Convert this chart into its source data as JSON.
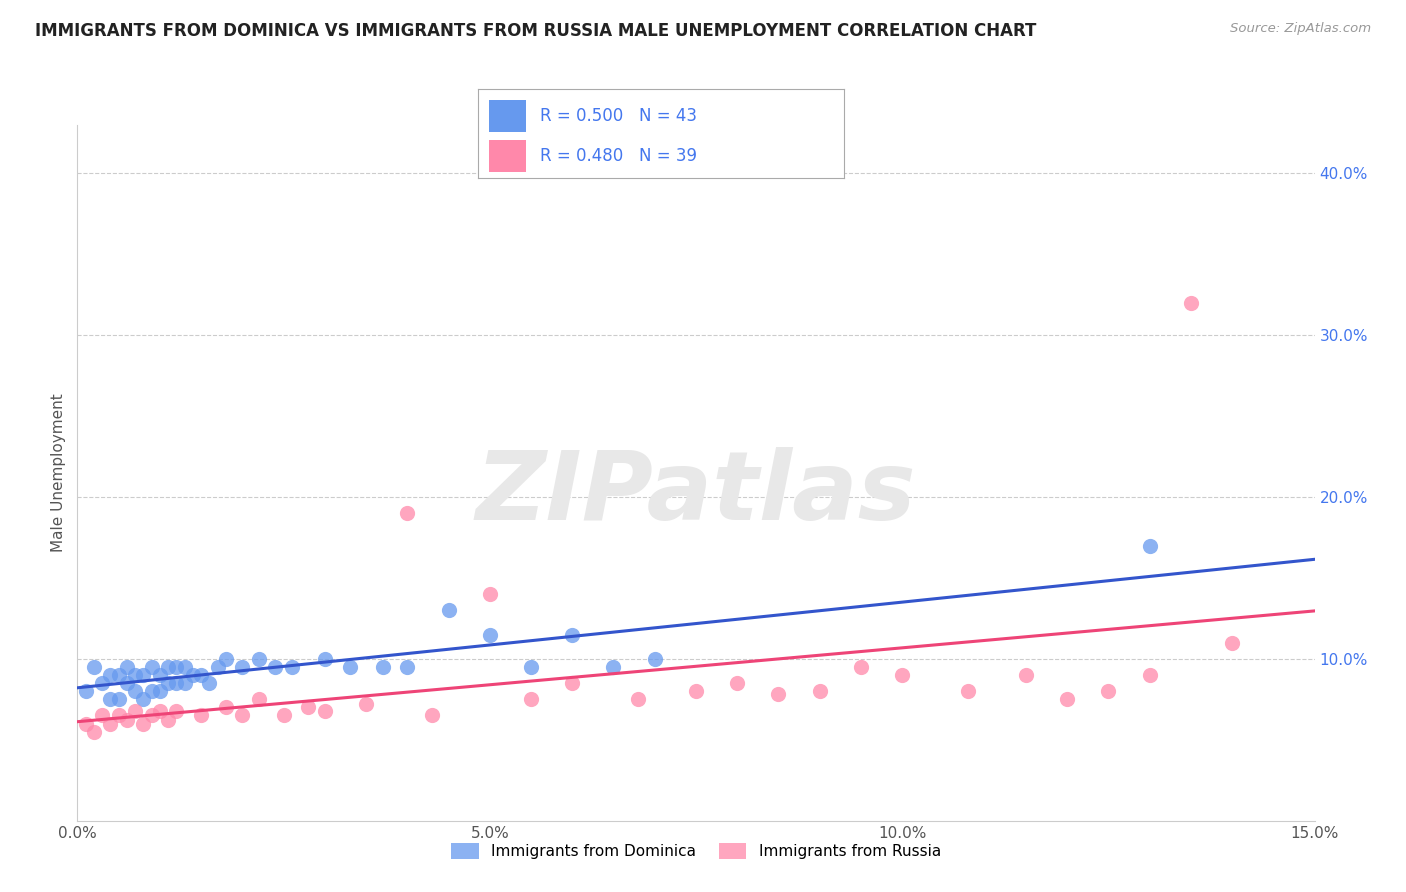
{
  "title": "IMMIGRANTS FROM DOMINICA VS IMMIGRANTS FROM RUSSIA MALE UNEMPLOYMENT CORRELATION CHART",
  "source": "Source: ZipAtlas.com",
  "ylabel": "Male Unemployment",
  "series": [
    {
      "name": "Immigrants from Dominica",
      "R": 0.5,
      "N": 43,
      "color": "#6699ee",
      "trend_color": "#3355cc",
      "trend_style": "-",
      "x": [
        0.001,
        0.002,
        0.003,
        0.004,
        0.004,
        0.005,
        0.005,
        0.006,
        0.006,
        0.007,
        0.007,
        0.008,
        0.008,
        0.009,
        0.009,
        0.01,
        0.01,
        0.011,
        0.011,
        0.012,
        0.012,
        0.013,
        0.013,
        0.014,
        0.015,
        0.016,
        0.017,
        0.018,
        0.02,
        0.022,
        0.024,
        0.026,
        0.03,
        0.033,
        0.037,
        0.04,
        0.045,
        0.05,
        0.055,
        0.06,
        0.065,
        0.07,
        0.13
      ],
      "y": [
        0.08,
        0.095,
        0.085,
        0.075,
        0.09,
        0.075,
        0.09,
        0.085,
        0.095,
        0.08,
        0.09,
        0.075,
        0.09,
        0.08,
        0.095,
        0.08,
        0.09,
        0.085,
        0.095,
        0.085,
        0.095,
        0.085,
        0.095,
        0.09,
        0.09,
        0.085,
        0.095,
        0.1,
        0.095,
        0.1,
        0.095,
        0.095,
        0.1,
        0.095,
        0.095,
        0.095,
        0.13,
        0.115,
        0.095,
        0.115,
        0.095,
        0.1,
        0.17
      ]
    },
    {
      "name": "Immigrants from Russia",
      "R": 0.48,
      "N": 39,
      "color": "#ff88aa",
      "trend_color": "#ee4477",
      "trend_style": "-",
      "x": [
        0.001,
        0.002,
        0.003,
        0.004,
        0.005,
        0.006,
        0.007,
        0.008,
        0.009,
        0.01,
        0.011,
        0.012,
        0.015,
        0.018,
        0.02,
        0.022,
        0.025,
        0.028,
        0.03,
        0.035,
        0.04,
        0.043,
        0.05,
        0.055,
        0.06,
        0.068,
        0.075,
        0.08,
        0.085,
        0.09,
        0.095,
        0.1,
        0.108,
        0.115,
        0.12,
        0.125,
        0.13,
        0.135,
        0.14
      ],
      "y": [
        0.06,
        0.055,
        0.065,
        0.06,
        0.065,
        0.062,
        0.068,
        0.06,
        0.065,
        0.068,
        0.062,
        0.068,
        0.065,
        0.07,
        0.065,
        0.075,
        0.065,
        0.07,
        0.068,
        0.072,
        0.19,
        0.065,
        0.14,
        0.075,
        0.085,
        0.075,
        0.08,
        0.085,
        0.078,
        0.08,
        0.095,
        0.09,
        0.08,
        0.09,
        0.075,
        0.08,
        0.09,
        0.32,
        0.11
      ]
    }
  ],
  "xlim": [
    0,
    0.15
  ],
  "ylim": [
    0.0,
    0.43
  ],
  "xticks": [
    0.0,
    0.05,
    0.1,
    0.15
  ],
  "xtick_labels": [
    "0.0%",
    "5.0%",
    "10.0%",
    "15.0%"
  ],
  "yticks_right": [
    0.1,
    0.2,
    0.3,
    0.4
  ],
  "ytick_labels_right": [
    "10.0%",
    "20.0%",
    "30.0%",
    "40.0%"
  ],
  "grid_color": "#cccccc",
  "background_color": "#ffffff",
  "watermark": "ZIPatlas",
  "watermark_color": "#e8e8e8",
  "title_fontsize": 12,
  "axis_label_fontsize": 11,
  "tick_fontsize": 11,
  "right_tick_color": "#4477ee"
}
